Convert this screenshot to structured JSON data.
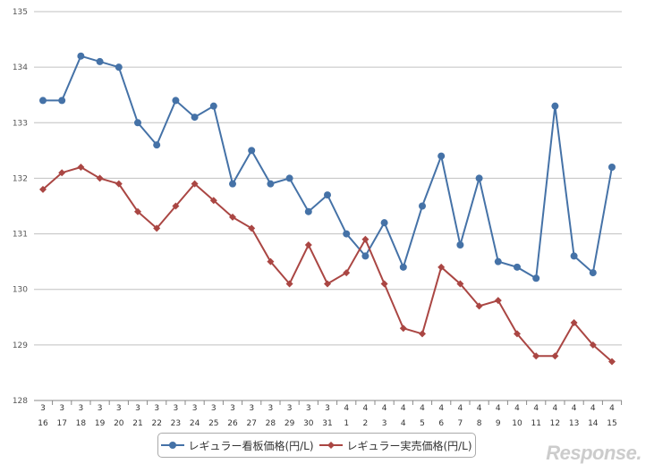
{
  "chart_data": {
    "type": "line",
    "title": "",
    "xlabel": "",
    "ylabel": "",
    "ylim": [
      128,
      135
    ],
    "yticks": [
      "128",
      "129",
      "130",
      "131",
      "132",
      "133",
      "134",
      "135"
    ],
    "categories": [
      [
        "3",
        "16"
      ],
      [
        "3",
        "17"
      ],
      [
        "3",
        "18"
      ],
      [
        "3",
        "19"
      ],
      [
        "3",
        "20"
      ],
      [
        "3",
        "21"
      ],
      [
        "3",
        "22"
      ],
      [
        "3",
        "23"
      ],
      [
        "3",
        "24"
      ],
      [
        "3",
        "25"
      ],
      [
        "3",
        "26"
      ],
      [
        "3",
        "27"
      ],
      [
        "3",
        "28"
      ],
      [
        "3",
        "29"
      ],
      [
        "3",
        "30"
      ],
      [
        "3",
        "31"
      ],
      [
        "4",
        "1"
      ],
      [
        "4",
        "2"
      ],
      [
        "4",
        "3"
      ],
      [
        "4",
        "4"
      ],
      [
        "4",
        "5"
      ],
      [
        "4",
        "6"
      ],
      [
        "4",
        "7"
      ],
      [
        "4",
        "8"
      ],
      [
        "4",
        "9"
      ],
      [
        "4",
        "10"
      ],
      [
        "4",
        "11"
      ],
      [
        "4",
        "12"
      ],
      [
        "4",
        "13"
      ],
      [
        "4",
        "14"
      ],
      [
        "4",
        "15"
      ]
    ],
    "series": [
      {
        "name": "レギュラー看板価格(円/L)",
        "color": "#4572a7",
        "marker": "circle",
        "values": [
          133.4,
          133.4,
          134.2,
          134.1,
          134.0,
          133.0,
          132.6,
          133.4,
          133.1,
          133.3,
          131.9,
          132.5,
          131.9,
          132.0,
          131.4,
          131.7,
          131.0,
          130.6,
          131.2,
          130.4,
          131.5,
          132.4,
          130.8,
          132.0,
          130.5,
          130.4,
          130.2,
          133.3,
          130.6,
          130.3,
          132.2
        ]
      },
      {
        "name": "レギュラー実売価格(円/L)",
        "color": "#aa4643",
        "marker": "diamond",
        "values": [
          131.8,
          132.1,
          132.2,
          132.0,
          131.9,
          131.4,
          131.1,
          131.5,
          131.9,
          131.6,
          131.3,
          131.1,
          130.5,
          130.1,
          130.8,
          130.1,
          130.3,
          130.9,
          130.1,
          129.3,
          129.2,
          130.4,
          130.1,
          129.7,
          129.8,
          129.2,
          128.8,
          128.8,
          129.4,
          129.0,
          128.7
        ]
      }
    ],
    "grid": true,
    "legend": "bottom-center"
  },
  "watermark": "Response."
}
